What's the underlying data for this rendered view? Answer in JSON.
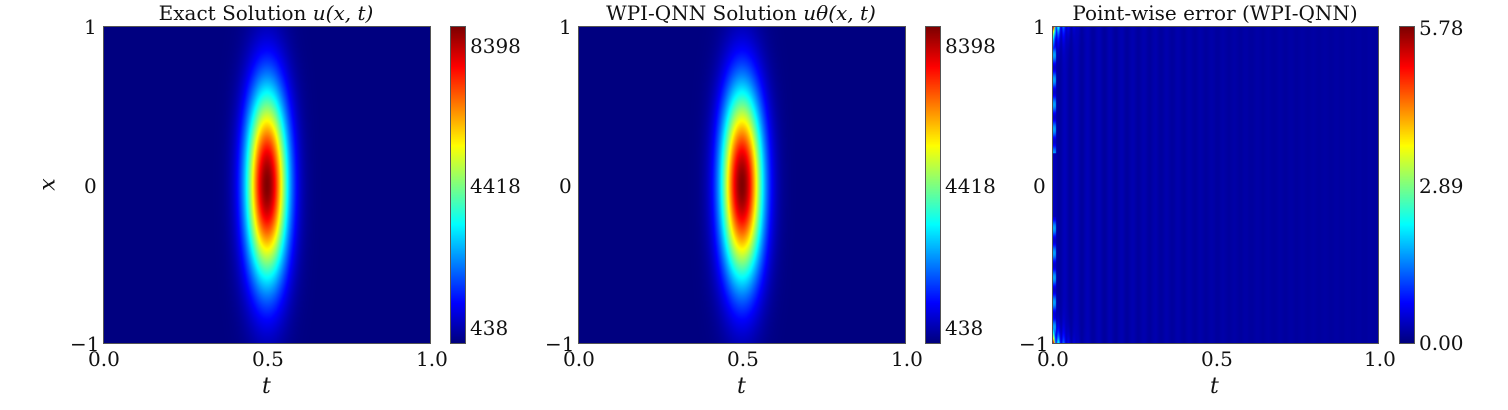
{
  "chart_data": [
    {
      "type": "heatmap",
      "title_text": "Exact Solution ",
      "title_math": "u(x, t)",
      "xlabel": "t",
      "ylabel": "x",
      "xticks": [
        "0.0",
        "0.5",
        "1.0"
      ],
      "yticks": [
        "1",
        "0",
        "−1"
      ],
      "xlim": [
        0.0,
        1.0
      ],
      "ylim": [
        -1,
        1
      ],
      "colormap": "jet",
      "colorbar": {
        "min": 438,
        "max": 8398,
        "ticks": [
          "8398",
          "4418",
          "438"
        ]
      },
      "field": {
        "kind": "gaussian",
        "t0": 0.5,
        "sigma_t": 0.045,
        "sigma_x": 0.42
      }
    },
    {
      "type": "heatmap",
      "title_text": "WPI-QNN Solution ",
      "title_math": "uθ(x, t)",
      "xlabel": "t",
      "ylabel": "",
      "xticks": [
        "0.0",
        "0.5",
        "1.0"
      ],
      "yticks": [
        "1",
        "0",
        "−1"
      ],
      "xlim": [
        0.0,
        1.0
      ],
      "ylim": [
        -1,
        1
      ],
      "colormap": "jet",
      "colorbar": {
        "min": 438,
        "max": 8398,
        "ticks": [
          "8398",
          "4418",
          "438"
        ]
      },
      "field": {
        "kind": "gaussian",
        "t0": 0.5,
        "sigma_t": 0.045,
        "sigma_x": 0.42
      }
    },
    {
      "type": "heatmap",
      "title_text": "Point-wise error (WPI-QNN)",
      "title_math": "",
      "xlabel": "t",
      "ylabel": "",
      "xticks": [
        "0.0",
        "0.5",
        "1.0"
      ],
      "yticks": [
        "1",
        "0",
        "−1"
      ],
      "xlim": [
        0.0,
        1.0
      ],
      "ylim": [
        -1,
        1
      ],
      "colormap": "jet",
      "colorbar": {
        "min": 0.0,
        "max": 5.78,
        "ticks": [
          "5.78",
          "2.89",
          "0.00"
        ]
      },
      "field": {
        "kind": "error",
        "note": "near-zero everywhere; max error concentrated at t≈0 near x=±1"
      }
    }
  ]
}
